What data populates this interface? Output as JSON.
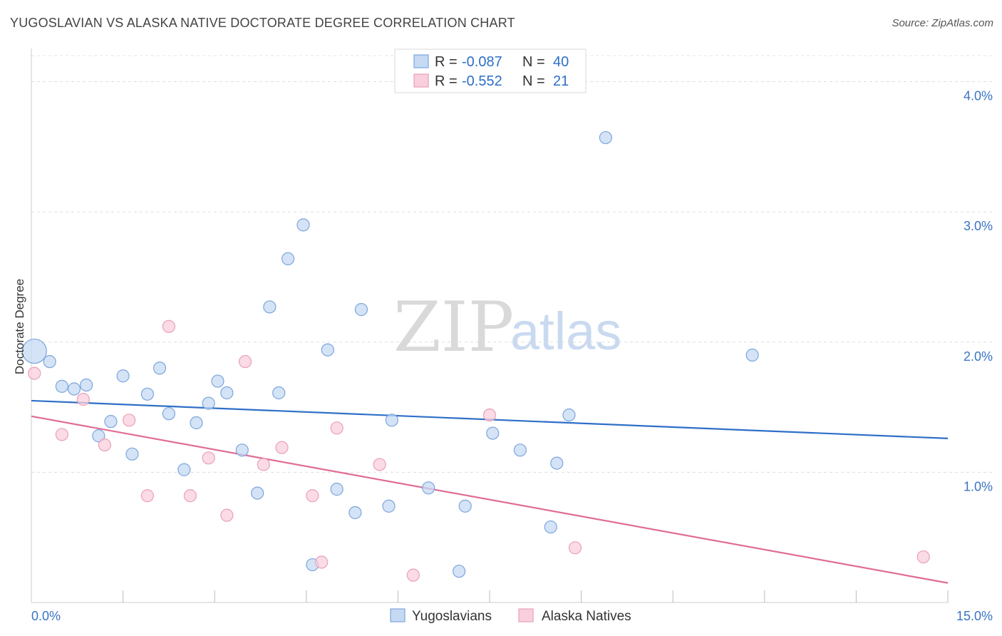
{
  "header": {
    "title": "YUGOSLAVIAN VS ALASKA NATIVE DOCTORATE DEGREE CORRELATION CHART",
    "source": "Source: ZipAtlas.com"
  },
  "watermark": {
    "zip": "ZIP",
    "atlas": "atlas"
  },
  "stats_legend": [
    {
      "r_label": "R =",
      "r_value": "-0.087",
      "n_label": "N =",
      "n_value": "40"
    },
    {
      "r_label": "R =",
      "r_value": "-0.552",
      "n_label": "N =",
      "n_value": "21"
    }
  ],
  "chart_data": {
    "type": "scatter",
    "title": "YUGOSLAVIAN VS ALASKA NATIVE DOCTORATE DEGREE CORRELATION CHART",
    "xlabel": "",
    "ylabel": "Doctorate Degree",
    "xlim": [
      0,
      15
    ],
    "ylim": [
      0,
      4.2
    ],
    "x_tick_labels": [
      {
        "value": 0,
        "label": "0.0%"
      },
      {
        "value": 15,
        "label": "15.0%"
      }
    ],
    "y_tick_labels": [
      {
        "value": 1,
        "label": "1.0%"
      },
      {
        "value": 2,
        "label": "2.0%"
      },
      {
        "value": 3,
        "label": "3.0%"
      },
      {
        "value": 4,
        "label": "4.0%"
      }
    ],
    "x_minor_ticks": [
      1.5,
      3,
      4.5,
      6,
      7.5,
      9,
      10.5,
      12,
      13.5
    ],
    "grid": true,
    "legend_position": "bottom-center",
    "colors": {
      "Yugoslavians": {
        "fill": "#c5d9f3",
        "stroke": "#7da6dc",
        "line": "#2e6fc8"
      },
      "Alaska Natives": {
        "fill": "#f9cfdc",
        "stroke": "#eaa0b8",
        "line": "#e06c96"
      }
    },
    "series": [
      {
        "name": "Yugoslavians",
        "trend": {
          "x": [
            0,
            15
          ],
          "y": [
            1.55,
            1.26
          ]
        },
        "points": [
          {
            "x": 0.05,
            "y": 1.93,
            "size": "large"
          },
          {
            "x": 0.3,
            "y": 1.85
          },
          {
            "x": 0.5,
            "y": 1.66
          },
          {
            "x": 0.7,
            "y": 1.64
          },
          {
            "x": 0.9,
            "y": 1.67
          },
          {
            "x": 1.1,
            "y": 1.28
          },
          {
            "x": 1.3,
            "y": 1.39
          },
          {
            "x": 1.5,
            "y": 1.74
          },
          {
            "x": 1.65,
            "y": 1.14
          },
          {
            "x": 1.9,
            "y": 1.6
          },
          {
            "x": 2.1,
            "y": 1.8
          },
          {
            "x": 2.25,
            "y": 1.45
          },
          {
            "x": 2.5,
            "y": 1.02
          },
          {
            "x": 2.7,
            "y": 1.38
          },
          {
            "x": 2.9,
            "y": 1.53
          },
          {
            "x": 3.05,
            "y": 1.7
          },
          {
            "x": 3.2,
            "y": 1.61
          },
          {
            "x": 3.45,
            "y": 1.17
          },
          {
            "x": 3.7,
            "y": 0.84
          },
          {
            "x": 3.9,
            "y": 2.27
          },
          {
            "x": 4.05,
            "y": 1.61
          },
          {
            "x": 4.2,
            "y": 2.64
          },
          {
            "x": 4.45,
            "y": 2.9
          },
          {
            "x": 4.6,
            "y": 0.29
          },
          {
            "x": 4.85,
            "y": 1.94
          },
          {
            "x": 5.0,
            "y": 0.87
          },
          {
            "x": 5.3,
            "y": 0.69
          },
          {
            "x": 5.4,
            "y": 2.25
          },
          {
            "x": 5.85,
            "y": 0.74
          },
          {
            "x": 5.9,
            "y": 1.4
          },
          {
            "x": 6.5,
            "y": 0.88
          },
          {
            "x": 7.0,
            "y": 0.24
          },
          {
            "x": 7.1,
            "y": 0.74
          },
          {
            "x": 7.55,
            "y": 1.3
          },
          {
            "x": 8.0,
            "y": 1.17
          },
          {
            "x": 8.5,
            "y": 0.58
          },
          {
            "x": 8.6,
            "y": 1.07
          },
          {
            "x": 8.8,
            "y": 1.44
          },
          {
            "x": 9.4,
            "y": 3.57
          },
          {
            "x": 11.8,
            "y": 1.9
          }
        ]
      },
      {
        "name": "Alaska Natives",
        "trend": {
          "x": [
            0,
            15
          ],
          "y": [
            1.43,
            0.15
          ]
        },
        "points": [
          {
            "x": 0.05,
            "y": 1.76
          },
          {
            "x": 0.5,
            "y": 1.29
          },
          {
            "x": 0.85,
            "y": 1.56
          },
          {
            "x": 1.2,
            "y": 1.21
          },
          {
            "x": 1.6,
            "y": 1.4
          },
          {
            "x": 1.9,
            "y": 0.82
          },
          {
            "x": 2.25,
            "y": 2.12
          },
          {
            "x": 2.6,
            "y": 0.82
          },
          {
            "x": 2.9,
            "y": 1.11
          },
          {
            "x": 3.2,
            "y": 0.67
          },
          {
            "x": 3.5,
            "y": 1.85
          },
          {
            "x": 3.8,
            "y": 1.06
          },
          {
            "x": 4.1,
            "y": 1.19
          },
          {
            "x": 4.6,
            "y": 0.82
          },
          {
            "x": 4.75,
            "y": 0.31
          },
          {
            "x": 5.0,
            "y": 1.34
          },
          {
            "x": 5.7,
            "y": 1.06
          },
          {
            "x": 6.25,
            "y": 0.21
          },
          {
            "x": 7.5,
            "y": 1.44
          },
          {
            "x": 8.9,
            "y": 0.42
          },
          {
            "x": 14.6,
            "y": 0.35
          }
        ]
      }
    ]
  }
}
